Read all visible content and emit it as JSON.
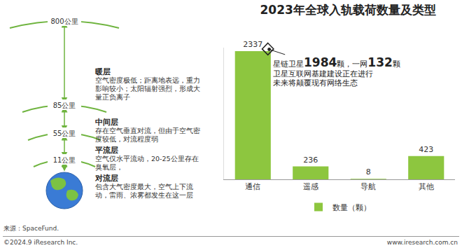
{
  "chart_data": {
    "type": "bar",
    "title": "2023年全球入轨载荷数量及类型",
    "categories": [
      "通信",
      "遥感",
      "导航",
      "其他"
    ],
    "series": [
      {
        "name": "数量（颗）",
        "color": "#8dc63f",
        "values": [
          2337,
          236,
          8,
          423
        ]
      }
    ],
    "ylim": [
      0,
      2400
    ],
    "yticks": [],
    "grid": false,
    "legend": "bottom",
    "data_labels": true,
    "tick_labels": "x",
    "annotations": [
      "星链卫星1984颗，一网132颗",
      "卫星互联网基建建设正在进行",
      "未来将颠覆现有网络生态"
    ]
  },
  "diagram": {
    "altitudes": [
      "800公里",
      "85公里",
      "55公里",
      "11公里"
    ],
    "layers": [
      {
        "name": "暖层",
        "desc": "空气密度极低；距离地表远，重力影响较小；太阳辐射强烈，形成大量正负离子"
      },
      {
        "name": "中间层",
        "desc": "存在空气垂直对流，但由于空气密度较低，对流程度弱"
      },
      {
        "name": "平流层",
        "desc": "空气仅水平流动，20-25公里存在臭氧层，"
      },
      {
        "name": "对流层",
        "desc": "包含大气密度最大，空气上下流动，雷雨、浓雾都发生在这一层"
      }
    ]
  },
  "footer": {
    "source": "来源：SpaceFund.",
    "copyright": "©2024.9 iResearch Inc.",
    "website": "www.iresearch.com.cn"
  }
}
